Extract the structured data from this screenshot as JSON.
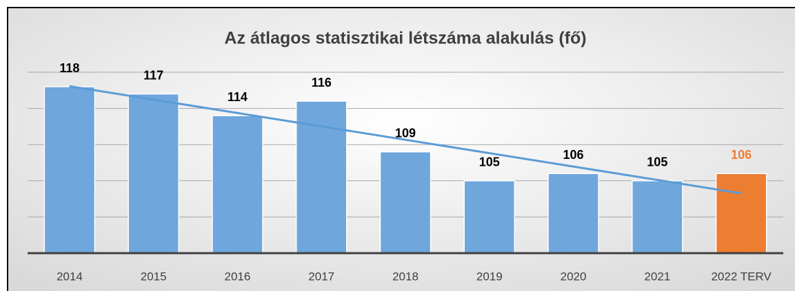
{
  "chart_data": {
    "type": "bar",
    "title": "Az átlagos statisztikai létszáma alakulás (fő)",
    "categories": [
      "2014",
      "2015",
      "2016",
      "2017",
      "2018",
      "2019",
      "2020",
      "2021",
      "2022 TERV"
    ],
    "values": [
      118,
      117,
      114,
      116,
      109,
      105,
      106,
      105,
      106
    ],
    "colors": [
      "#6fa6dc",
      "#6fa6dc",
      "#6fa6dc",
      "#6fa6dc",
      "#6fa6dc",
      "#6fa6dc",
      "#6fa6dc",
      "#6fa6dc",
      "#ed7d31"
    ],
    "label_colors": [
      "#000000",
      "#000000",
      "#000000",
      "#000000",
      "#000000",
      "#000000",
      "#000000",
      "#000000",
      "#ed7d31"
    ],
    "ylim": [
      95,
      120
    ],
    "yticks": [
      95,
      100,
      105,
      110,
      115,
      120
    ],
    "grid": true,
    "trendline": true,
    "trendline_color": "#5b9bd5"
  }
}
